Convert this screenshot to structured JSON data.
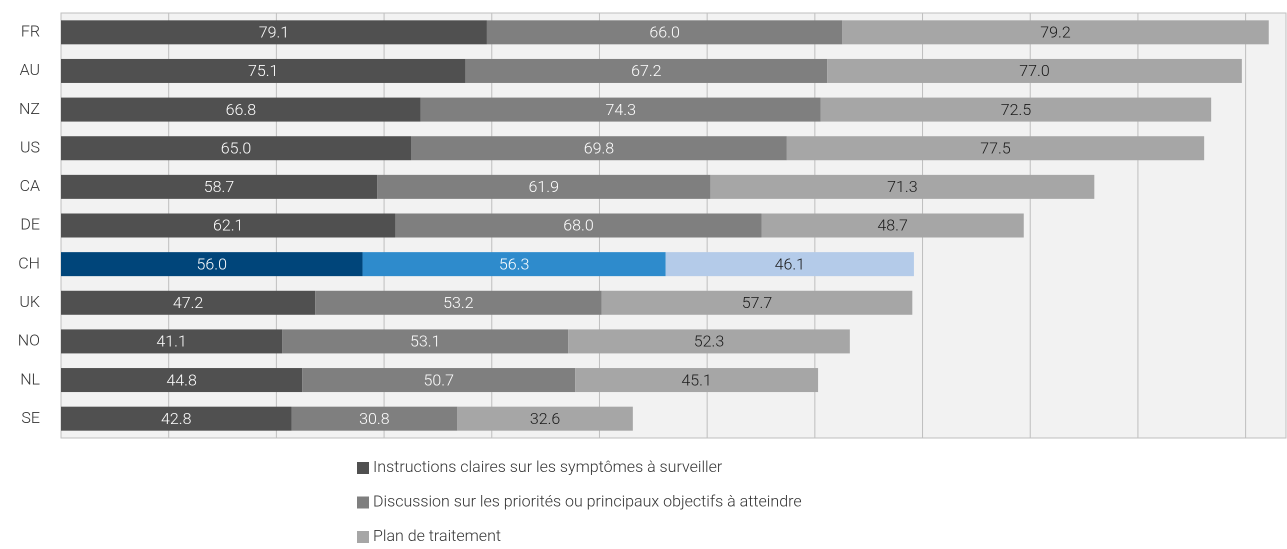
{
  "chart_data": {
    "type": "stacked-barh",
    "categories": [
      "FR",
      "AU",
      "NZ",
      "US",
      "CA",
      "DE",
      "CH",
      "UK",
      "NO",
      "NL",
      "SE"
    ],
    "series": [
      {
        "name": "Instructions claires sur les symptômes à surveiller",
        "color": "#505050",
        "highlight_color": "#00457a",
        "label_color": "#ffffff",
        "values": [
          79.1,
          75.1,
          66.8,
          65.0,
          58.7,
          62.1,
          56.0,
          47.2,
          41.1,
          44.8,
          42.8
        ],
        "value_labels": [
          "79.1",
          "75.1",
          "66.8",
          "65.0",
          "58.7",
          "62.1",
          "56.0",
          "47.2",
          "41.1",
          "44.8",
          "42.8"
        ]
      },
      {
        "name": "Discussion sur les priorités ou principaux objectifs à atteindre",
        "color": "#7f7f7f",
        "highlight_color": "#2e8bcc",
        "label_color": "#ffffff",
        "values": [
          66.0,
          67.2,
          74.3,
          69.8,
          61.9,
          68.0,
          56.3,
          53.2,
          53.1,
          50.7,
          30.8
        ],
        "value_labels": [
          "66.0",
          "67.2",
          "74.3",
          "69.8",
          "61.9",
          "68.0",
          "56.3",
          "53.2",
          "53.1",
          "50.7",
          "30.8"
        ]
      },
      {
        "name": "Plan de traitement",
        "color": "#a6a6a6",
        "highlight_color": "#b4cbe9",
        "label_color": "#1a1a1a",
        "values": [
          79.2,
          77.0,
          72.5,
          77.5,
          71.3,
          48.7,
          46.1,
          57.7,
          52.3,
          45.1,
          32.6
        ],
        "value_labels": [
          "79.2",
          "77.0",
          "72.5",
          "77.5",
          "71.3",
          "48.7",
          "46.1",
          "57.7",
          "52.3",
          "45.1",
          "32.6"
        ]
      }
    ],
    "highlight_index": 6,
    "xlim": [
      0,
      227.5
    ],
    "xticks": [
      0,
      20,
      40,
      60,
      80,
      100,
      120,
      140,
      160,
      180,
      200,
      220
    ],
    "grid": true
  }
}
